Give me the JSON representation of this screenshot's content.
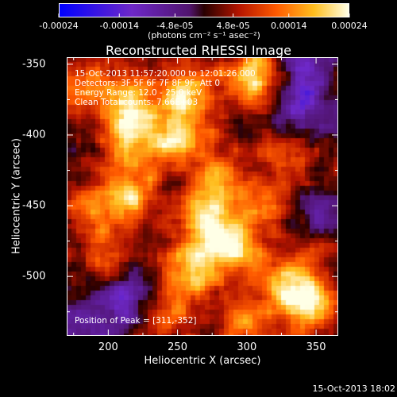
{
  "chart_data": {
    "type": "heatmap",
    "title": "Reconstructed RHESSI Image",
    "xlabel": "Heliocentric X (arcsec)",
    "ylabel": "Heliocentric Y (arcsec)",
    "xlim": [
      170,
      366
    ],
    "ylim": [
      -542,
      -345
    ],
    "x_ticks": [
      "200",
      "250",
      "300",
      "350"
    ],
    "x_tick_values": [
      200,
      250,
      300,
      350
    ],
    "y_ticks": [
      "-350",
      "-400",
      "-450",
      "-500"
    ],
    "y_tick_values": [
      -350,
      -400,
      -450,
      -500
    ],
    "colorbar": {
      "ticks": [
        "-0.00024",
        "-0.00014",
        "-4.8e-05",
        "4.8e-05",
        "0.00014",
        "0.00024"
      ],
      "tick_values": [
        -0.00024,
        -0.00014,
        -4.8e-05,
        4.8e-05,
        0.00014,
        0.00024
      ],
      "unit_label": "(photons cm⁻² s⁻¹ asec⁻²)",
      "range": [
        -0.00024,
        0.00024
      ]
    },
    "annotations": {
      "time": "15-Oct-2013 11:57:20.000 to 12:01:26.000",
      "detectors": "Detectors: 3F 5F 6F 7F 8F 9F, Att 0",
      "energy": "Energy Range: 12.0 - 25.0 keV",
      "clean": "Clean     Total counts: 7.66E+03",
      "peak": "Position of Peak = [311,-352]"
    },
    "peak_position": [
      311,
      -352
    ],
    "blobs": [
      {
        "x": 215,
        "y": -375,
        "v": 0.8
      },
      {
        "x": 255,
        "y": -370,
        "v": 0.9
      },
      {
        "x": 305,
        "y": -360,
        "v": 1.0
      },
      {
        "x": 250,
        "y": -400,
        "v": 0.95
      },
      {
        "x": 215,
        "y": -402,
        "v": 0.85
      },
      {
        "x": 280,
        "y": -430,
        "v": 0.75
      },
      {
        "x": 270,
        "y": -460,
        "v": 0.9
      },
      {
        "x": 290,
        "y": -480,
        "v": 1.0
      },
      {
        "x": 260,
        "y": -495,
        "v": 0.85
      },
      {
        "x": 330,
        "y": -505,
        "v": 0.8
      },
      {
        "x": 345,
        "y": -520,
        "v": 0.95
      },
      {
        "x": 200,
        "y": -490,
        "v": 0.5
      },
      {
        "x": 190,
        "y": -455,
        "v": 0.55
      },
      {
        "x": 240,
        "y": -525,
        "v": 0.6
      },
      {
        "x": 300,
        "y": -530,
        "v": 0.7
      },
      {
        "x": 350,
        "y": -470,
        "v": 0.55
      },
      {
        "x": 180,
        "y": -365,
        "v": 0.6
      },
      {
        "x": 330,
        "y": -410,
        "v": 0.5
      },
      {
        "x": 215,
        "y": -440,
        "v": 0.8
      },
      {
        "x": 315,
        "y": -450,
        "v": 0.65
      }
    ],
    "holes": [
      {
        "x": 215,
        "y": -515,
        "v": -0.8
      },
      {
        "x": 350,
        "y": -460,
        "v": -0.75
      },
      {
        "x": 335,
        "y": -385,
        "v": -0.6
      },
      {
        "x": 175,
        "y": -540,
        "v": -0.5
      },
      {
        "x": 345,
        "y": -355,
        "v": -0.55
      }
    ]
  },
  "timestamp": "15-Oct-2013 18:02"
}
